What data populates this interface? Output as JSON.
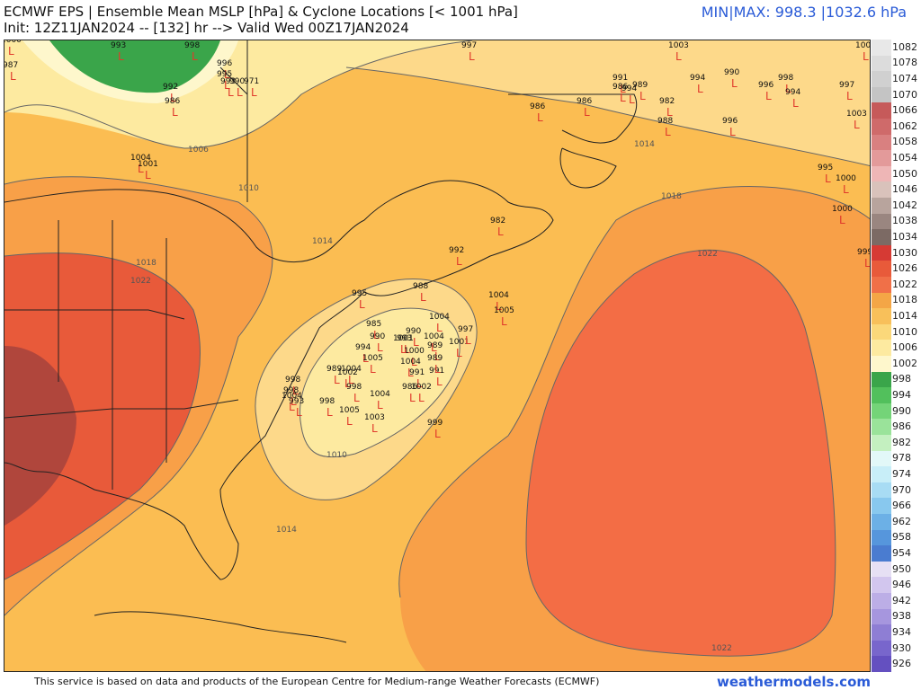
{
  "header": {
    "title_line1": "ECMWF EPS | Ensemble Mean MSLP [hPa] & Cyclone Locations [< 1001 hPa]",
    "title_line2": "Init: 12Z11JAN2024 -- [132] hr --> Valid Wed 00Z17JAN2024",
    "minmax": "MIN|MAX: 998.3 |1032.6 hPa"
  },
  "footer": {
    "credit": "This service is based on data and products of the European Centre for Medium-range Weather Forecasts (ECMWF)",
    "brand": "weathermodels.com"
  },
  "colorbar": {
    "levels": [
      "1082",
      "1078",
      "1074",
      "1070",
      "1066",
      "1062",
      "1058",
      "1054",
      "1050",
      "1046",
      "1042",
      "1038",
      "1034",
      "1030",
      "1026",
      "1022",
      "1018",
      "1014",
      "1010",
      "1006",
      "1002",
      "998",
      "994",
      "990",
      "986",
      "982",
      "978",
      "974",
      "970",
      "966",
      "962",
      "958",
      "954",
      "950",
      "946",
      "942",
      "938",
      "934",
      "930",
      "926"
    ],
    "colors": [
      "#e8e8e8",
      "#dcdcdc",
      "#d0d0d0",
      "#c4c4c4",
      "#c65a5a",
      "#cf6a6a",
      "#d98080",
      "#e39a9a",
      "#eeb6b6",
      "#d9c2bb",
      "#b8a49d",
      "#9a8680",
      "#7c6a64",
      "#d63a34",
      "#e85a3a",
      "#f07048",
      "#f4a646",
      "#f8c05a",
      "#fbd87a",
      "#fdeaa0",
      "#fef7cc",
      "#3aa54a",
      "#52c05c",
      "#74d478",
      "#9ae39a",
      "#c4f0c0",
      "#e2f8f8",
      "#c8eef8",
      "#a8dcf4",
      "#88c8ee",
      "#6cb0e6",
      "#5696dc",
      "#4a7cd0",
      "#e6e0f4",
      "#d2c6ee",
      "#bcaee6",
      "#a696de",
      "#8e7ed4",
      "#7866cc",
      "#6450c0"
    ]
  },
  "map": {
    "isobar_labels": [
      "1006",
      "1010",
      "1014",
      "1018",
      "1022",
      "1014",
      "1022",
      "1010",
      "1014",
      "1018",
      "1022",
      "1014",
      "1022"
    ],
    "low_marker": "L",
    "lows": [
      "1000",
      "987",
      "993",
      "998",
      "997",
      "992",
      "986",
      "996",
      "995",
      "993",
      "990",
      "971",
      "1003",
      "1001",
      "1004",
      "1001",
      "982",
      "986",
      "991",
      "994",
      "990",
      "996",
      "998",
      "994",
      "997",
      "986",
      "986",
      "989",
      "994",
      "982",
      "988",
      "996",
      "1003",
      "1000",
      "995",
      "1000",
      "999",
      "1004",
      "992",
      "995",
      "988",
      "1004",
      "1005",
      "991",
      "1001",
      "997",
      "985",
      "990",
      "990",
      "1004",
      "989",
      "993",
      "994",
      "1000",
      "1004",
      "1005",
      "989",
      "1002",
      "1004",
      "998",
      "998",
      "998",
      "1004",
      "993",
      "1001",
      "991",
      "989",
      "998",
      "1005",
      "1004",
      "1003",
      "999",
      "986",
      "1002"
    ]
  }
}
